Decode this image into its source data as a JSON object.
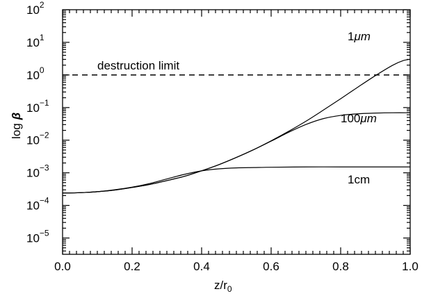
{
  "chart_data": {
    "type": "line",
    "title": "",
    "xlabel": "z/r",
    "xlabel_subscript": "0",
    "ylabel": "log",
    "ylabel_symbol": "β",
    "xlim": [
      0.0,
      1.0
    ],
    "ylim_log10": [
      -5.5,
      2
    ],
    "y_scale": "log",
    "x_ticks": [
      {
        "value": 0.0,
        "label": "0.0"
      },
      {
        "value": 0.2,
        "label": "0.2"
      },
      {
        "value": 0.4,
        "label": "0.4"
      },
      {
        "value": 0.6,
        "label": "0.6"
      },
      {
        "value": 0.8,
        "label": "0.8"
      },
      {
        "value": 1.0,
        "label": "1.0"
      }
    ],
    "y_ticks": [
      {
        "exp": 2,
        "base": "10",
        "sup": "2"
      },
      {
        "exp": 1,
        "base": "10",
        "sup": "1"
      },
      {
        "exp": 0,
        "base": "10",
        "sup": "0"
      },
      {
        "exp": -1,
        "base": "10",
        "sup": "−1"
      },
      {
        "exp": -2,
        "base": "10",
        "sup": "−2"
      },
      {
        "exp": -3,
        "base": "10",
        "sup": "−3"
      },
      {
        "exp": -4,
        "base": "10",
        "sup": "−4"
      },
      {
        "exp": -5,
        "base": "10",
        "sup": "−5"
      }
    ],
    "grid": false,
    "series": [
      {
        "name": "1μm",
        "x": [
          0.0,
          0.05,
          0.1,
          0.15,
          0.2,
          0.25,
          0.3,
          0.35,
          0.4,
          0.45,
          0.5,
          0.55,
          0.6,
          0.65,
          0.7,
          0.75,
          0.8,
          0.85,
          0.9,
          0.95,
          0.98,
          1.0
        ],
        "log_y": [
          -3.62,
          -3.61,
          -3.58,
          -3.53,
          -3.45,
          -3.36,
          -3.24,
          -3.11,
          -2.94,
          -2.75,
          -2.53,
          -2.29,
          -2.02,
          -1.73,
          -1.42,
          -1.08,
          -0.73,
          -0.37,
          -0.02,
          0.3,
          0.44,
          0.48
        ]
      },
      {
        "name": "100μm",
        "x": [
          0.0,
          0.05,
          0.1,
          0.15,
          0.2,
          0.25,
          0.3,
          0.35,
          0.4,
          0.45,
          0.5,
          0.55,
          0.6,
          0.65,
          0.7,
          0.75,
          0.8,
          0.85,
          0.9,
          0.95,
          1.0
        ],
        "log_y": [
          -3.62,
          -3.61,
          -3.58,
          -3.53,
          -3.45,
          -3.36,
          -3.24,
          -3.11,
          -2.94,
          -2.75,
          -2.53,
          -2.29,
          -2.03,
          -1.76,
          -1.52,
          -1.34,
          -1.24,
          -1.19,
          -1.17,
          -1.16,
          -1.16
        ]
      },
      {
        "name": "1cm",
        "x": [
          0.0,
          0.05,
          0.1,
          0.15,
          0.2,
          0.25,
          0.3,
          0.35,
          0.4,
          0.45,
          0.5,
          0.55,
          0.6,
          0.7,
          0.8,
          0.9,
          1.0
        ],
        "log_y": [
          -3.62,
          -3.61,
          -3.58,
          -3.52,
          -3.44,
          -3.33,
          -3.19,
          -3.05,
          -2.94,
          -2.88,
          -2.85,
          -2.84,
          -2.83,
          -2.82,
          -2.82,
          -2.82,
          -2.82
        ]
      }
    ],
    "reference_line": {
      "label": "destruction limit",
      "log_y": 0
    },
    "annotations": [
      {
        "text": "1",
        "unit": "μm",
        "series": "1μm"
      },
      {
        "text": "100",
        "unit": "μm",
        "series": "100μm"
      },
      {
        "text": "1cm",
        "unit": "",
        "series": "1cm"
      }
    ]
  }
}
